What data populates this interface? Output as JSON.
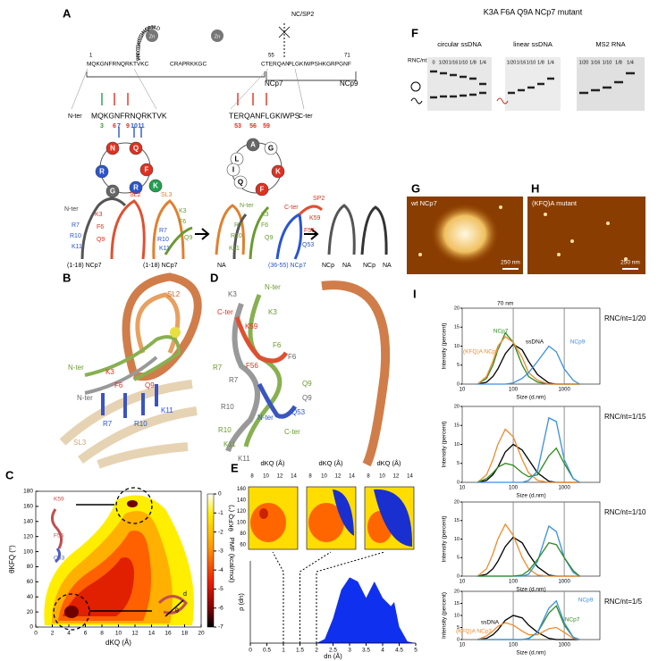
{
  "panel_labels": {
    "a": "A",
    "b": "B",
    "c": "C",
    "d": "D",
    "e": "E",
    "f": "F",
    "g": "G",
    "h": "H",
    "i": "I"
  },
  "panel_a": {
    "seq_start": "1",
    "seq_nterm": "MQKGNFRNQRKTVKC",
    "loop1": "FNYGKEGHIARN",
    "zn1": "Zn",
    "seq_mid": "CRAPRKKGC",
    "loop2": "WKCGKEGHQMKD",
    "zn2": "Zn",
    "pos55": "55",
    "cleavage": "NC/SP2",
    "seq_cterm": "CTERQAN",
    "seq_tail": "PLGKIWPSHKGRPGNF",
    "pos71": "71",
    "ncp7": "NCp7",
    "ncp9": "NCp9",
    "nter_label": "N-ter",
    "nter_peptide": "MQKGNFRNQRKTVK",
    "nter_positions": [
      "3",
      "6",
      "7",
      "9",
      "10",
      "11"
    ],
    "cter_peptide": "TERQANFLGKIWPS",
    "cter_label": "C-ter",
    "cter_positions": [
      "53",
      "56",
      "59"
    ],
    "wheel_left": [
      "N",
      "Q",
      "F",
      "R",
      "R",
      "K",
      "G"
    ],
    "wheel_right": [
      "A",
      "G",
      "L",
      "K",
      "F",
      "Q",
      "I"
    ],
    "complex_left": {
      "sl2": "SL2",
      "sl3": "SL3",
      "labels": [
        "N-ter",
        "K3",
        "F6",
        "Q9",
        "R7",
        "R10",
        "K11"
      ],
      "peptide": "(1-18) NCp7",
      "labels2": [
        "K3",
        "F6",
        "Q9",
        "R7",
        "R10",
        "K11"
      ],
      "peptide2": "(1-18) NCp7",
      "result": [
        "NA"
      ]
    },
    "complex_right": {
      "labels": [
        "N-ter",
        "K3",
        "F6",
        "R7",
        "Q9",
        "R10",
        "K11"
      ],
      "c_ter": "C-ter",
      "sp2": "SP2",
      "k59": "K59",
      "f56": "F56",
      "q53": "Q53",
      "peptide": "(36-55) NCp7",
      "result": [
        "NCp",
        "NA",
        "NCp",
        "NA"
      ]
    }
  },
  "panel_b": {
    "labels": [
      "SL2",
      "N-ter",
      "K3",
      "F6",
      "Q9",
      "N-ter",
      "R7",
      "R10",
      "K11",
      "SL3"
    ]
  },
  "panel_d": {
    "labels": [
      "K3",
      "N-ter",
      "C-ter",
      "K3",
      "K59",
      "F6",
      "F6",
      "R7",
      "F56",
      "R7",
      "Q9",
      "Q9",
      "R10",
      "Q53",
      "N-ter",
      "R10",
      "C-ter",
      "K11",
      "K11"
    ]
  },
  "panel_c": {
    "inset_top": [
      "K59",
      "F56",
      "Q53"
    ],
    "inset_bottom": [
      "d",
      "θ"
    ]
  },
  "panel_e": {
    "top_x_label": [
      "dKQ (Å)",
      "dKQ (Å)",
      "dKQ (Å)"
    ],
    "top_xticks": [
      8,
      10,
      12,
      14
    ],
    "top_y_label": "θKFQ (°)",
    "top_yticks": [
      60,
      80,
      100,
      120,
      140,
      160
    ]
  },
  "panel_f": {
    "title": "K3A F6A Q9A NCp7 mutant",
    "ratio_label": "RNC/nt",
    "gels": [
      {
        "title": "circular ssDNA",
        "lanes": [
          "0",
          "1/20",
          "1/16",
          "1/10",
          "1/8",
          "1/4"
        ]
      },
      {
        "title": "linear ssDNA",
        "lanes": [
          "1/20",
          "1/16",
          "1/10",
          "1/8",
          "1/4"
        ]
      },
      {
        "title": "MS2 RNA",
        "lanes": [
          "1/20",
          "1/16",
          "1/10",
          "1/8",
          "1/4"
        ]
      }
    ]
  },
  "panel_g": {
    "label": "wt NCp7",
    "scale": "250 nm"
  },
  "panel_h": {
    "label": "(KFQ)A mutant",
    "scale": "250 nm"
  },
  "chart_data": [
    {
      "type": "contour",
      "x_label": "dKQ (Å)",
      "y_label": "θKFQ (°)",
      "xlim": [
        0,
        20
      ],
      "ylim": [
        0,
        180
      ],
      "xticks": [
        0,
        2,
        4,
        6,
        8,
        10,
        12,
        14,
        16,
        18,
        20
      ],
      "yticks": [
        0,
        20,
        40,
        60,
        80,
        100,
        120,
        140,
        160,
        180
      ],
      "colorbar_label": "PMF (kcal/mol)",
      "colorbar_lim": [
        0,
        -7
      ],
      "colorbar_ticks": [
        0,
        -1,
        -2,
        -3,
        -4,
        -5,
        -6,
        -7
      ]
    },
    {
      "type": "area",
      "x_label": "dn (Å)",
      "y_label": "ρ (dn)",
      "color": "#1030f0",
      "x": [
        2,
        2.25,
        2.5,
        2.75,
        3,
        3.25,
        3.5,
        3.75,
        4,
        4.25,
        4.35,
        4.5,
        4.75,
        5
      ],
      "values": [
        0,
        0.05,
        0.3,
        0.65,
        0.8,
        0.75,
        0.55,
        0.75,
        0.55,
        0.45,
        0.5,
        0.2,
        0.02,
        0
      ],
      "xlim": [
        0,
        5
      ],
      "ylim": [
        0,
        1
      ],
      "xticks": [
        0,
        0.5,
        1,
        1.5,
        2,
        2.5,
        3,
        3.5,
        4,
        4.5,
        5
      ]
    },
    {
      "type": "line",
      "title": "RNC/nt=1/20",
      "x_label": "Size (d.nm)",
      "y_label": "Intensity (percent)",
      "annotation": "70 nm",
      "log_x": true,
      "grid_x": true,
      "xlim": [
        10,
        5000
      ],
      "xticks": [
        10,
        100,
        1000
      ],
      "ylim": [
        0,
        20
      ],
      "yticks": [
        0,
        5,
        10,
        15,
        20
      ],
      "x": [
        20,
        30,
        40,
        50,
        70,
        100,
        150,
        200,
        300,
        500,
        700,
        1000,
        1500,
        2000
      ],
      "series": [
        {
          "name": "ssDNA",
          "color": "#000000",
          "values": [
            0,
            0.5,
            2,
            4,
            8,
            10.5,
            9,
            6,
            2.5,
            0.3,
            0,
            0,
            0,
            0
          ]
        },
        {
          "name": "NCp7",
          "color": "#2e8b22",
          "values": [
            0,
            1.5,
            5,
            9,
            13.5,
            11,
            5,
            2,
            0.5,
            0,
            0,
            0,
            0,
            0
          ]
        },
        {
          "name": "(KFQ)A NCp7",
          "color": "#f08a2c",
          "values": [
            0,
            2,
            6,
            10,
            12.5,
            11,
            7,
            3,
            1,
            0,
            0,
            0,
            0,
            0
          ]
        },
        {
          "name": "NCp9",
          "color": "#3a8fe0",
          "values": [
            0,
            0,
            0,
            0,
            0,
            0.3,
            1.5,
            3,
            6,
            10,
            8.5,
            4,
            1,
            0
          ]
        }
      ]
    },
    {
      "type": "line",
      "title": "RNC/nt=1/15",
      "x_label": "Size (d.nm)",
      "y_label": "Intensity (percent)",
      "log_x": true,
      "grid_x": true,
      "xlim": [
        10,
        5000
      ],
      "xticks": [
        10,
        100,
        1000
      ],
      "ylim": [
        0,
        20
      ],
      "yticks": [
        0,
        5,
        10,
        15,
        20
      ],
      "x": [
        20,
        30,
        40,
        50,
        70,
        100,
        150,
        200,
        300,
        500,
        700,
        1000,
        1500,
        2000
      ],
      "series": [
        {
          "color": "#000000",
          "values": [
            0,
            0.5,
            2,
            4,
            8,
            10,
            8.5,
            6,
            2.5,
            0.3,
            0,
            0,
            0,
            0
          ]
        },
        {
          "color": "#f08a2c",
          "values": [
            0,
            2,
            6,
            10,
            14,
            12,
            6,
            2.5,
            0.5,
            0,
            0,
            0,
            0,
            0
          ]
        },
        {
          "color": "#2e8b22",
          "values": [
            0,
            1,
            2.5,
            4,
            5,
            4.5,
            2.5,
            1.5,
            2,
            7,
            9,
            5,
            1,
            0
          ]
        },
        {
          "color": "#3a8fe0",
          "values": [
            0,
            0,
            0,
            0,
            0,
            0,
            0,
            0.5,
            3,
            17,
            16,
            6,
            1,
            0
          ]
        }
      ]
    },
    {
      "type": "line",
      "title": "RNC/nt=1/10",
      "x_label": "Size (d.nm)",
      "y_label": "Intensity (percent)",
      "log_x": true,
      "grid_x": true,
      "xlim": [
        10,
        5000
      ],
      "xticks": [
        10,
        100,
        1000
      ],
      "ylim": [
        0,
        20
      ],
      "yticks": [
        0,
        5,
        10,
        15,
        20
      ],
      "x": [
        20,
        30,
        40,
        50,
        70,
        100,
        150,
        200,
        300,
        500,
        700,
        1000,
        1500,
        2000
      ],
      "series": [
        {
          "color": "#000000",
          "values": [
            0,
            0.5,
            2,
            4,
            8,
            10.5,
            9,
            6,
            2.5,
            0.3,
            0,
            0,
            0,
            0
          ]
        },
        {
          "color": "#f08a2c",
          "values": [
            0,
            2,
            6,
            10,
            14,
            11,
            5,
            2,
            0.3,
            0,
            0,
            0,
            0,
            0
          ]
        },
        {
          "color": "#3a8fe0",
          "values": [
            0,
            0,
            0,
            0,
            0,
            0,
            0,
            0.5,
            4,
            13.5,
            12,
            5,
            1,
            0
          ]
        },
        {
          "color": "#2e8b22",
          "values": [
            0,
            0,
            0,
            0,
            0,
            0,
            0.3,
            1.5,
            4.5,
            9,
            8.5,
            5,
            1.5,
            0
          ]
        }
      ]
    },
    {
      "type": "line",
      "title": "RNC/nt=1/5",
      "x_label": "Size (d.nm)",
      "y_label": "Intensity (percent)",
      "log_x": true,
      "grid_x": true,
      "xlim": [
        10,
        5000
      ],
      "xticks": [
        10,
        100,
        1000
      ],
      "ylim": [
        0,
        20
      ],
      "yticks": [
        0,
        5,
        10,
        15,
        20
      ],
      "x": [
        20,
        30,
        40,
        50,
        70,
        100,
        150,
        200,
        300,
        500,
        700,
        1000,
        1500,
        2000
      ],
      "series": [
        {
          "name": "ssDNA",
          "color": "#000000",
          "values": [
            0,
            0.5,
            2,
            4,
            8,
            10,
            9,
            6,
            3,
            0.5,
            0,
            0,
            0,
            0
          ]
        },
        {
          "name": "(KFQ)A NCp7",
          "color": "#f08a2c",
          "values": [
            0,
            1.5,
            3.5,
            5.5,
            7,
            6,
            3.5,
            2,
            2,
            4.5,
            5,
            3,
            0.5,
            0
          ]
        },
        {
          "name": "NCp7",
          "color": "#2e8b22",
          "values": [
            0,
            0,
            0,
            0,
            0,
            0,
            0,
            0.5,
            3,
            11,
            14,
            6,
            1,
            0
          ]
        },
        {
          "name": "NCp9",
          "color": "#3a8fe0",
          "values": [
            0,
            0,
            0,
            0,
            0,
            0,
            0,
            0.3,
            3,
            13,
            16,
            7,
            1,
            0
          ]
        }
      ]
    }
  ]
}
